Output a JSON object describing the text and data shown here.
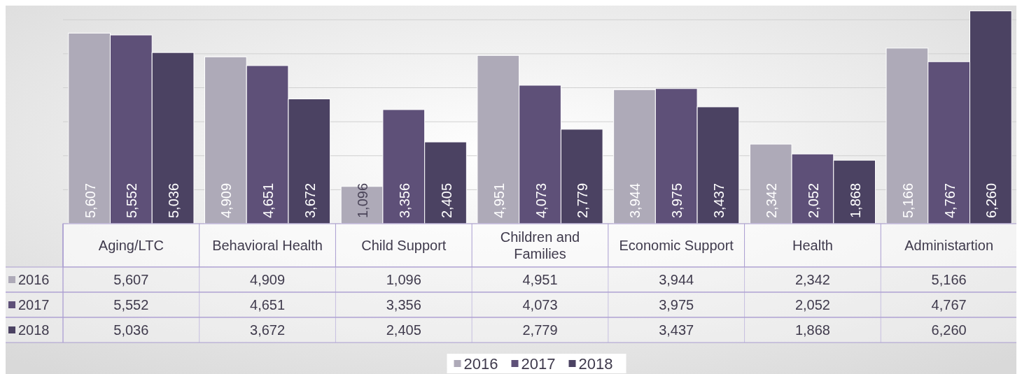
{
  "chart_data": {
    "type": "bar",
    "categories": [
      "Aging/LTC",
      "Behavioral Health",
      "Child Support",
      "Children and Families",
      "Economic Support",
      "Health",
      "Administartion"
    ],
    "series": [
      {
        "name": "2016",
        "color": "#aeaab8",
        "values": [
          5607,
          4909,
          1096,
          4951,
          3944,
          2342,
          5166
        ],
        "value_labels": [
          "5,607",
          "4,909",
          "1,096",
          "4,951",
          "3,944",
          "2,342",
          "5,166"
        ]
      },
      {
        "name": "2017",
        "color": "#5e5078",
        "values": [
          5552,
          4651,
          3356,
          4073,
          3975,
          2052,
          4767
        ],
        "value_labels": [
          "5,552",
          "4,651",
          "3,356",
          "4,073",
          "3,975",
          "2,052",
          "4,767"
        ]
      },
      {
        "name": "2018",
        "color": "#4b4262",
        "values": [
          5036,
          3672,
          2405,
          2779,
          3437,
          1868,
          6260
        ],
        "value_labels": [
          "5,036",
          "3,672",
          "2,405",
          "2,779",
          "3,437",
          "1,868",
          "6,260"
        ]
      }
    ],
    "grid": "y",
    "tick_labels": "x",
    "legend": "bottom"
  }
}
